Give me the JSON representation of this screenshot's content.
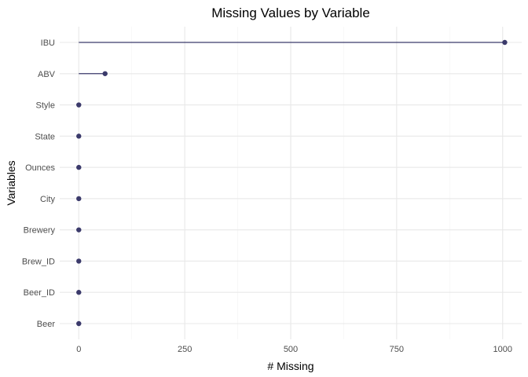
{
  "chart_data": {
    "type": "lollipop",
    "title": "Missing Values by Variable",
    "xlabel": "# Missing",
    "ylabel": "Variables",
    "xlim": [
      -45,
      1045
    ],
    "x_ticks": [
      0,
      250,
      500,
      750,
      1000
    ],
    "x_tick_labels": [
      "0",
      "250",
      "500",
      "750",
      "1000"
    ],
    "categories": [
      "IBU",
      "ABV",
      "Style",
      "State",
      "Ounces",
      "City",
      "Brewery",
      "Brew_ID",
      "Beer_ID",
      "Beer"
    ],
    "values": [
      1005,
      62,
      0,
      0,
      0,
      0,
      0,
      0,
      0,
      0
    ],
    "grid": true,
    "color": "#3b3a6b"
  }
}
